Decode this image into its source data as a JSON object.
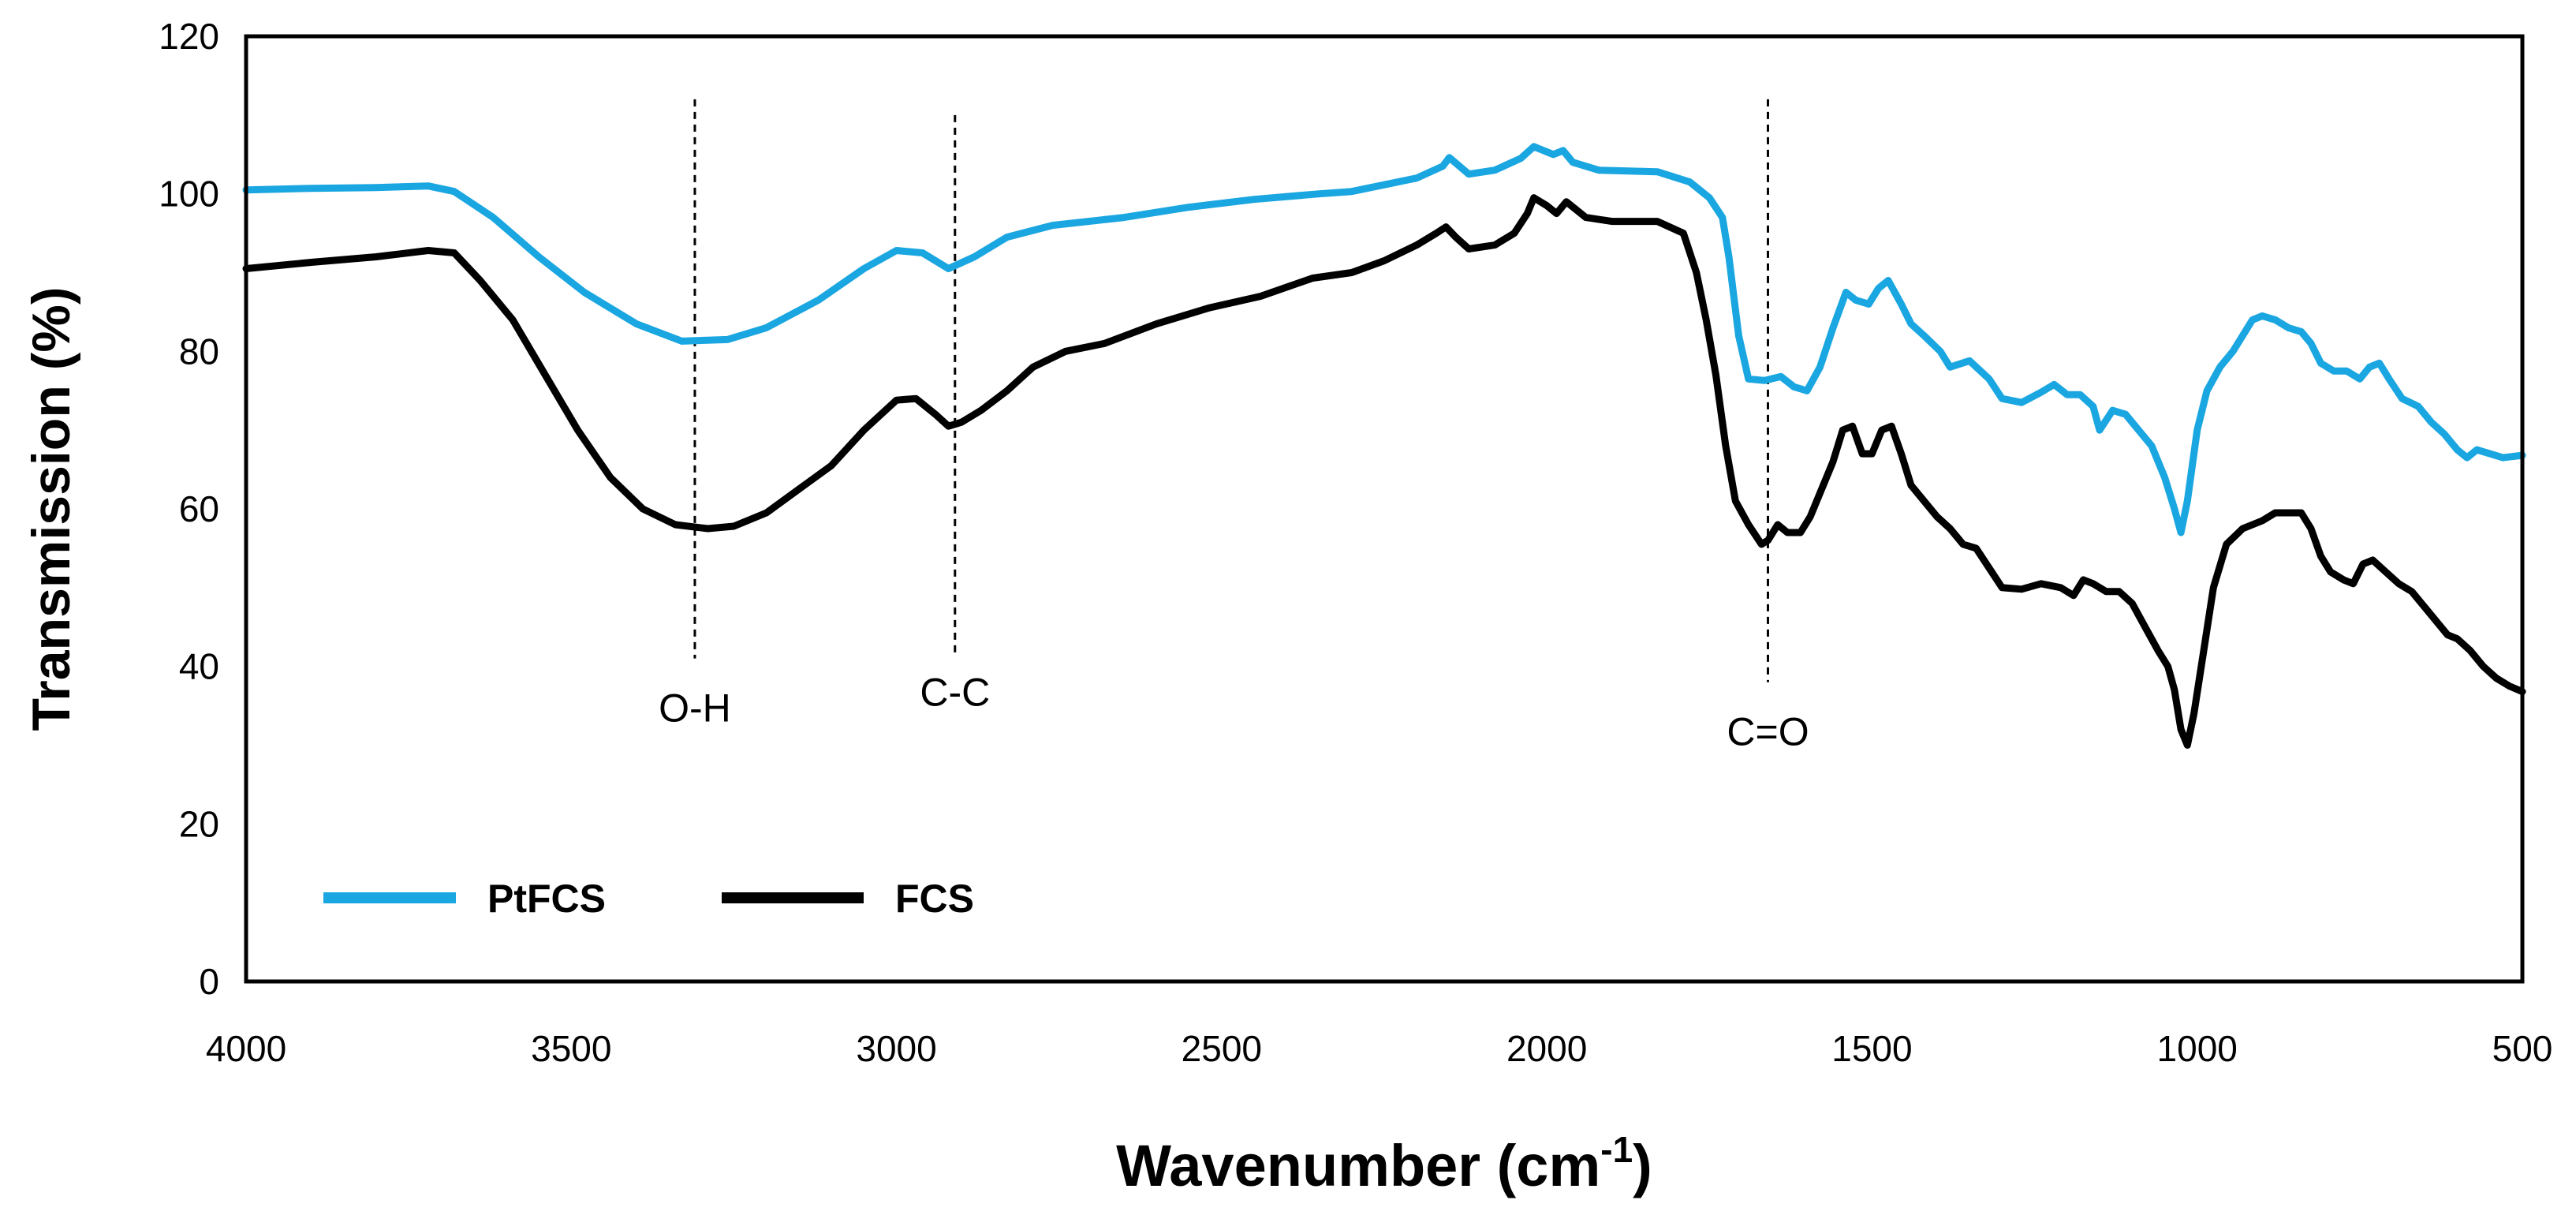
{
  "chart_data": {
    "type": "line",
    "xlabel": "Wavenumber (cm",
    "xlabel_sup": "-1",
    "xlabel_suffix": ")",
    "ylabel": "Transmission (%)",
    "xlim": [
      4000,
      500
    ],
    "ylim": [
      0,
      120
    ],
    "x_ticks": [
      4000,
      3500,
      3000,
      2500,
      2000,
      1500,
      1000,
      500
    ],
    "y_ticks": [
      0,
      20,
      40,
      60,
      80,
      100,
      120
    ],
    "legend": {
      "placement": "bottom-left"
    },
    "series": [
      {
        "name": "PtFCS",
        "color": "#1AA6E0",
        "points": [
          [
            4000,
            100.5
          ],
          [
            3900,
            100.7
          ],
          [
            3800,
            100.8
          ],
          [
            3720,
            101
          ],
          [
            3680,
            100.3
          ],
          [
            3620,
            97
          ],
          [
            3550,
            92
          ],
          [
            3480,
            87.5
          ],
          [
            3400,
            83.5
          ],
          [
            3330,
            81.3
          ],
          [
            3260,
            81.5
          ],
          [
            3200,
            83
          ],
          [
            3120,
            86.5
          ],
          [
            3050,
            90.5
          ],
          [
            3000,
            92.8
          ],
          [
            2960,
            92.5
          ],
          [
            2920,
            90.5
          ],
          [
            2880,
            92
          ],
          [
            2830,
            94.5
          ],
          [
            2760,
            96
          ],
          [
            2650,
            97
          ],
          [
            2550,
            98.3
          ],
          [
            2450,
            99.3
          ],
          [
            2350,
            100
          ],
          [
            2300,
            100.3
          ],
          [
            2200,
            102
          ],
          [
            2160,
            103.5
          ],
          [
            2150,
            104.6
          ],
          [
            2120,
            102.5
          ],
          [
            2080,
            103
          ],
          [
            2040,
            104.5
          ],
          [
            2020,
            106
          ],
          [
            1990,
            105
          ],
          [
            1975,
            105.5
          ],
          [
            1960,
            104
          ],
          [
            1920,
            103
          ],
          [
            1830,
            102.8
          ],
          [
            1780,
            101.5
          ],
          [
            1750,
            99.5
          ],
          [
            1730,
            97
          ],
          [
            1720,
            92
          ],
          [
            1705,
            82
          ],
          [
            1690,
            76.5
          ],
          [
            1665,
            76.3
          ],
          [
            1640,
            76.8
          ],
          [
            1620,
            75.5
          ],
          [
            1600,
            75
          ],
          [
            1580,
            78
          ],
          [
            1560,
            83
          ],
          [
            1540,
            87.5
          ],
          [
            1525,
            86.5
          ],
          [
            1505,
            86
          ],
          [
            1490,
            88
          ],
          [
            1475,
            89
          ],
          [
            1455,
            86
          ],
          [
            1440,
            83.5
          ],
          [
            1420,
            82
          ],
          [
            1395,
            80
          ],
          [
            1380,
            78
          ],
          [
            1350,
            78.8
          ],
          [
            1320,
            76.5
          ],
          [
            1300,
            74
          ],
          [
            1270,
            73.5
          ],
          [
            1240,
            74.8
          ],
          [
            1220,
            75.8
          ],
          [
            1200,
            74.5
          ],
          [
            1180,
            74.5
          ],
          [
            1160,
            73
          ],
          [
            1150,
            70
          ],
          [
            1130,
            72.5
          ],
          [
            1110,
            72
          ],
          [
            1090,
            70
          ],
          [
            1070,
            68
          ],
          [
            1050,
            64
          ],
          [
            1035,
            60
          ],
          [
            1025,
            57
          ],
          [
            1015,
            61
          ],
          [
            1000,
            70
          ],
          [
            985,
            75
          ],
          [
            965,
            78
          ],
          [
            945,
            80
          ],
          [
            930,
            82
          ],
          [
            915,
            84
          ],
          [
            900,
            84.5
          ],
          [
            880,
            84
          ],
          [
            860,
            83
          ],
          [
            840,
            82.5
          ],
          [
            825,
            81
          ],
          [
            810,
            78.5
          ],
          [
            790,
            77.5
          ],
          [
            770,
            77.5
          ],
          [
            750,
            76.5
          ],
          [
            735,
            78
          ],
          [
            720,
            78.5
          ],
          [
            705,
            76.5
          ],
          [
            685,
            74
          ],
          [
            660,
            73
          ],
          [
            640,
            71
          ],
          [
            620,
            69.5
          ],
          [
            600,
            67.5
          ],
          [
            585,
            66.5
          ],
          [
            570,
            67.5
          ],
          [
            550,
            67
          ],
          [
            530,
            66.5
          ],
          [
            500,
            66.8
          ]
        ]
      },
      {
        "name": "FCS",
        "color": "#000000",
        "points": [
          [
            4000,
            90.5
          ],
          [
            3900,
            91.3
          ],
          [
            3800,
            92
          ],
          [
            3720,
            92.8
          ],
          [
            3680,
            92.5
          ],
          [
            3640,
            89
          ],
          [
            3590,
            84
          ],
          [
            3540,
            77
          ],
          [
            3490,
            70
          ],
          [
            3440,
            64
          ],
          [
            3390,
            60
          ],
          [
            3340,
            58
          ],
          [
            3290,
            57.5
          ],
          [
            3250,
            57.8
          ],
          [
            3200,
            59.5
          ],
          [
            3150,
            62.5
          ],
          [
            3100,
            65.5
          ],
          [
            3050,
            70
          ],
          [
            3000,
            73.8
          ],
          [
            2970,
            74
          ],
          [
            2940,
            72
          ],
          [
            2920,
            70.5
          ],
          [
            2900,
            71
          ],
          [
            2870,
            72.5
          ],
          [
            2830,
            75
          ],
          [
            2790,
            78
          ],
          [
            2740,
            80
          ],
          [
            2680,
            81
          ],
          [
            2600,
            83.5
          ],
          [
            2520,
            85.5
          ],
          [
            2440,
            87
          ],
          [
            2360,
            89.3
          ],
          [
            2300,
            90
          ],
          [
            2250,
            91.5
          ],
          [
            2200,
            93.5
          ],
          [
            2170,
            95
          ],
          [
            2155,
            95.8
          ],
          [
            2140,
            94.5
          ],
          [
            2120,
            93
          ],
          [
            2080,
            93.5
          ],
          [
            2050,
            95
          ],
          [
            2030,
            97.5
          ],
          [
            2020,
            99.5
          ],
          [
            2000,
            98.5
          ],
          [
            1985,
            97.5
          ],
          [
            1970,
            99
          ],
          [
            1955,
            98
          ],
          [
            1940,
            97
          ],
          [
            1900,
            96.5
          ],
          [
            1830,
            96.5
          ],
          [
            1790,
            95
          ],
          [
            1770,
            90
          ],
          [
            1755,
            84
          ],
          [
            1740,
            77
          ],
          [
            1725,
            68
          ],
          [
            1710,
            61
          ],
          [
            1690,
            58
          ],
          [
            1670,
            55.5
          ],
          [
            1660,
            56
          ],
          [
            1645,
            58
          ],
          [
            1630,
            57
          ],
          [
            1610,
            57
          ],
          [
            1595,
            59
          ],
          [
            1580,
            62
          ],
          [
            1560,
            66
          ],
          [
            1545,
            70
          ],
          [
            1530,
            70.5
          ],
          [
            1515,
            67
          ],
          [
            1500,
            67
          ],
          [
            1485,
            70
          ],
          [
            1470,
            70.5
          ],
          [
            1455,
            67
          ],
          [
            1440,
            63
          ],
          [
            1420,
            61
          ],
          [
            1400,
            59
          ],
          [
            1380,
            57.5
          ],
          [
            1360,
            55.5
          ],
          [
            1340,
            55
          ],
          [
            1320,
            52.5
          ],
          [
            1300,
            50
          ],
          [
            1270,
            49.8
          ],
          [
            1240,
            50.5
          ],
          [
            1210,
            50
          ],
          [
            1190,
            49
          ],
          [
            1175,
            51
          ],
          [
            1160,
            50.5
          ],
          [
            1140,
            49.5
          ],
          [
            1120,
            49.5
          ],
          [
            1100,
            48
          ],
          [
            1080,
            45
          ],
          [
            1060,
            42
          ],
          [
            1045,
            40
          ],
          [
            1035,
            37
          ],
          [
            1025,
            32
          ],
          [
            1015,
            30
          ],
          [
            1005,
            34
          ],
          [
            990,
            42
          ],
          [
            975,
            50
          ],
          [
            955,
            55.5
          ],
          [
            930,
            57.5
          ],
          [
            900,
            58.5
          ],
          [
            880,
            59.5
          ],
          [
            860,
            59.5
          ],
          [
            840,
            59.5
          ],
          [
            825,
            57.5
          ],
          [
            810,
            54
          ],
          [
            795,
            52
          ],
          [
            775,
            51
          ],
          [
            760,
            50.5
          ],
          [
            745,
            53
          ],
          [
            730,
            53.5
          ],
          [
            710,
            52
          ],
          [
            690,
            50.5
          ],
          [
            670,
            49.5
          ],
          [
            650,
            47.5
          ],
          [
            630,
            45.5
          ],
          [
            615,
            44
          ],
          [
            600,
            43.5
          ],
          [
            580,
            42
          ],
          [
            560,
            40
          ],
          [
            540,
            38.5
          ],
          [
            520,
            37.5
          ],
          [
            500,
            36.8
          ]
        ]
      }
    ],
    "annotations": [
      {
        "label": "O-H",
        "x": 3310,
        "y_top": 112,
        "y_bottom": 41,
        "label_y": 33
      },
      {
        "label": "C-C",
        "x": 2910,
        "y_top": 110,
        "y_bottom": 41.5,
        "label_y": 35
      },
      {
        "label": "C=O",
        "x": 1660,
        "y_top": 112,
        "y_bottom": 38,
        "label_y": 30
      }
    ]
  }
}
